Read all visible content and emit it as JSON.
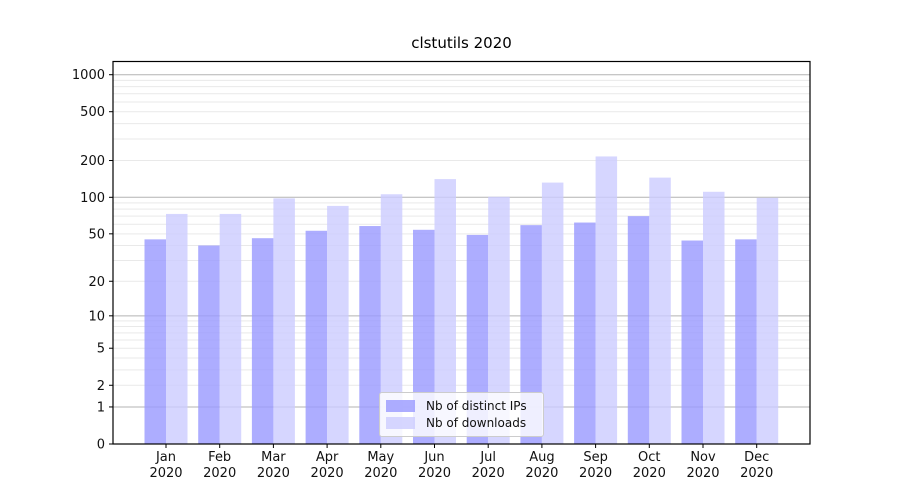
{
  "chart_data": {
    "type": "bar",
    "title": "clstutils 2020",
    "categories": [
      "Jan",
      "Feb",
      "Mar",
      "Apr",
      "May",
      "Jun",
      "Jul",
      "Aug",
      "Sep",
      "Oct",
      "Nov",
      "Dec"
    ],
    "year": "2020",
    "series": [
      {
        "name": "Nb of distinct IPs",
        "color": "#9999ff",
        "values": [
          45,
          40,
          46,
          53,
          58,
          54,
          49,
          59,
          62,
          70,
          44,
          45
        ]
      },
      {
        "name": "Nb of downloads",
        "color": "#ccccff",
        "values": [
          73,
          73,
          98,
          85,
          106,
          141,
          101,
          132,
          216,
          145,
          111,
          99
        ]
      }
    ],
    "bar_alpha": 0.8,
    "y_scale": "log1p",
    "y_ticks": [
      0,
      1,
      2,
      5,
      10,
      20,
      50,
      100,
      200,
      500,
      1000
    ],
    "ylim": [
      0,
      1290
    ],
    "xlabel": "",
    "ylabel": "",
    "grid": {
      "major_at": [
        1,
        10,
        100,
        1000
      ],
      "major_color": "#b3b3b3",
      "minor_color": "#e9e9e9"
    },
    "axis_color": "#000000",
    "text_color": "#111111",
    "legend_position": "lower center"
  }
}
